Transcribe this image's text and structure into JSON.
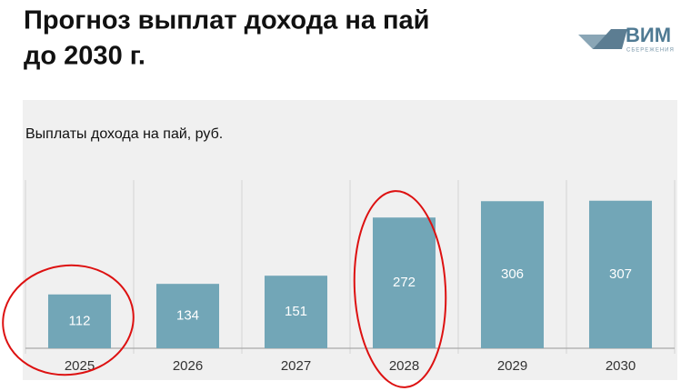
{
  "header": {
    "title_lines": [
      "Прогноз выплат дохода на пай",
      "до 2030 г."
    ],
    "logo": {
      "name": "ВИМ",
      "tagline": "СБЕРЕЖЕНИЯ"
    }
  },
  "chart_data": {
    "type": "bar",
    "title": "Выплаты дохода на пай, руб.",
    "categories": [
      "2025",
      "2026",
      "2027",
      "2028",
      "2029",
      "2030"
    ],
    "values": [
      112,
      134,
      151,
      272,
      306,
      307
    ],
    "color": "#72a6b7",
    "ylim": [
      0,
      350
    ]
  }
}
